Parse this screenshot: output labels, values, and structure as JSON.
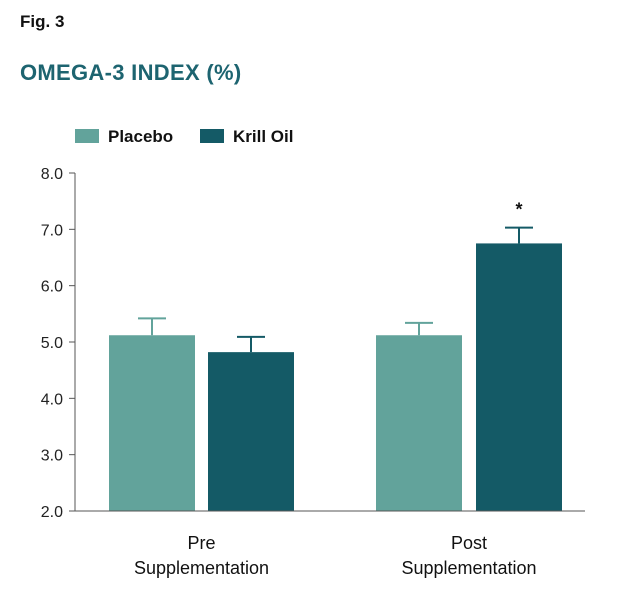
{
  "figure": {
    "label": "Fig. 3",
    "title": "OMEGA-3 INDEX (%)"
  },
  "colors": {
    "title": "#1d6470",
    "placebo": "#62a39b",
    "krill_oil": "#145a66",
    "axis": "#555555"
  },
  "chart_data": {
    "type": "bar",
    "title": "OMEGA-3 INDEX (%)",
    "xlabel": "",
    "ylabel": "",
    "ylim": [
      2.0,
      8.0
    ],
    "yticks": [
      "2.0",
      "3.0",
      "4.0",
      "5.0",
      "6.0",
      "7.0",
      "8.0"
    ],
    "categories": [
      {
        "line1": "Pre",
        "line2": "Supplementation"
      },
      {
        "line1": "Post",
        "line2": "Supplementation"
      }
    ],
    "series": [
      {
        "name": "Placebo",
        "values": [
          5.12,
          5.12
        ],
        "error": [
          0.3,
          0.22
        ]
      },
      {
        "name": "Krill Oil",
        "values": [
          4.82,
          6.75
        ],
        "error": [
          0.27,
          0.28
        ]
      }
    ],
    "annotations": [
      {
        "category": 1,
        "series": 1,
        "text": "*"
      }
    ],
    "legend": "top-left",
    "grid": false
  }
}
